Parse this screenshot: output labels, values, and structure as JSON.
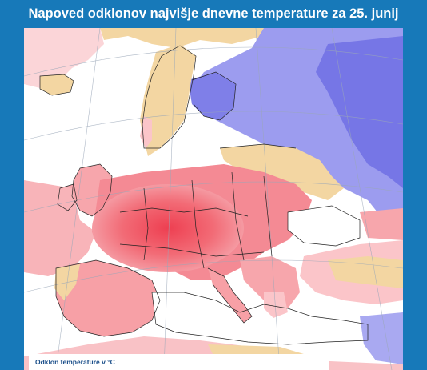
{
  "title": "Napoved odklonov najvišje dnevne temperature za 25. junij",
  "legend": {
    "label": "Odklon temperature v °C"
  },
  "map": {
    "region": "Europe",
    "colors": {
      "strong_warm": "#f0505e",
      "warm": "#f7a0a6",
      "slight_warm": "#fbd0d2",
      "neutral": "#f3d6a2",
      "slight_cold": "#a9a9f1",
      "cold": "#7a7ae8",
      "sea": "#ffffff",
      "frame": "#1779b9"
    }
  }
}
